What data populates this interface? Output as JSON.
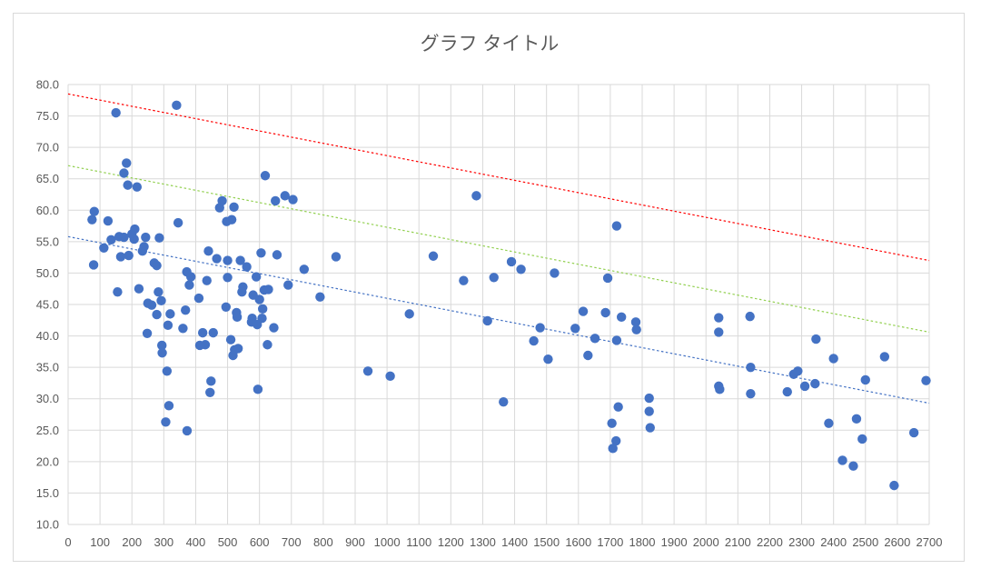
{
  "chart_data": {
    "type": "scatter",
    "title": "グラフ タイトル",
    "xlabel": "",
    "ylabel": "",
    "xlim": [
      0,
      2700
    ],
    "ylim": [
      10,
      80
    ],
    "x_ticks": [
      0,
      100,
      200,
      300,
      400,
      500,
      600,
      700,
      800,
      900,
      1000,
      1100,
      1200,
      1300,
      1400,
      1500,
      1600,
      1700,
      1800,
      1900,
      2000,
      2100,
      2200,
      2300,
      2400,
      2500,
      2600,
      2700
    ],
    "y_ticks": [
      10,
      15,
      20,
      25,
      30,
      35,
      40,
      45,
      50,
      55,
      60,
      65,
      70,
      75,
      80
    ],
    "y_tick_labels": [
      "10.0",
      "15.0",
      "20.0",
      "25.0",
      "30.0",
      "35.0",
      "40.0",
      "45.0",
      "50.0",
      "55.0",
      "60.0",
      "65.0",
      "70.0",
      "75.0",
      "80.0"
    ],
    "grid": true,
    "legend": "none",
    "colors": {
      "points": "#4472c4",
      "trend": "#4472c4",
      "upper": "#ff0000",
      "middle": "#92d050",
      "grid": "#d9d9d9",
      "text": "#595959"
    },
    "points": [
      [
        75,
        58.5
      ],
      [
        80,
        51.3
      ],
      [
        82,
        59.8
      ],
      [
        112,
        54
      ],
      [
        125,
        58.3
      ],
      [
        135,
        55.3
      ],
      [
        150,
        75.5
      ],
      [
        155,
        47
      ],
      [
        160,
        55.8
      ],
      [
        165,
        52.6
      ],
      [
        175,
        55.7
      ],
      [
        175,
        65.9
      ],
      [
        183,
        67.5
      ],
      [
        187,
        64
      ],
      [
        190,
        52.8
      ],
      [
        200,
        56.2
      ],
      [
        207,
        55.4
      ],
      [
        209,
        57
      ],
      [
        216,
        63.7
      ],
      [
        222,
        47.5
      ],
      [
        233,
        53.5
      ],
      [
        238,
        54.2
      ],
      [
        243,
        55.7
      ],
      [
        248,
        40.4
      ],
      [
        250,
        45.2
      ],
      [
        262,
        44.9
      ],
      [
        270,
        51.6
      ],
      [
        278,
        51.2
      ],
      [
        278,
        43.4
      ],
      [
        283,
        47
      ],
      [
        286,
        55.6
      ],
      [
        292,
        45.6
      ],
      [
        294,
        38.5
      ],
      [
        295,
        37.3
      ],
      [
        306,
        26.3
      ],
      [
        310,
        34.4
      ],
      [
        313,
        41.7
      ],
      [
        316,
        28.9
      ],
      [
        320,
        43.5
      ],
      [
        340,
        76.7
      ],
      [
        345,
        58
      ],
      [
        360,
        41.2
      ],
      [
        368,
        44.1
      ],
      [
        372,
        50.2
      ],
      [
        373,
        24.9
      ],
      [
        380,
        48.1
      ],
      [
        385,
        49.4
      ],
      [
        410,
        46
      ],
      [
        413,
        38.5
      ],
      [
        422,
        40.5
      ],
      [
        430,
        38.6
      ],
      [
        435,
        48.8
      ],
      [
        440,
        53.5
      ],
      [
        445,
        31
      ],
      [
        448,
        32.8
      ],
      [
        455,
        40.5
      ],
      [
        466,
        52.3
      ],
      [
        475,
        60.4
      ],
      [
        483,
        61.5
      ],
      [
        495,
        44.6
      ],
      [
        497,
        58.2
      ],
      [
        500,
        52
      ],
      [
        500,
        49.3
      ],
      [
        510,
        39.4
      ],
      [
        513,
        58.5
      ],
      [
        517,
        36.9
      ],
      [
        520,
        60.5
      ],
      [
        522,
        37.8
      ],
      [
        528,
        43.7
      ],
      [
        530,
        43
      ],
      [
        533,
        38
      ],
      [
        540,
        52
      ],
      [
        545,
        47
      ],
      [
        548,
        47.8
      ],
      [
        560,
        51
      ],
      [
        575,
        42.2
      ],
      [
        577,
        42.8
      ],
      [
        580,
        46.5
      ],
      [
        590,
        49.4
      ],
      [
        593,
        41.8
      ],
      [
        595,
        31.5
      ],
      [
        600,
        45.8
      ],
      [
        605,
        53.2
      ],
      [
        608,
        42.8
      ],
      [
        610,
        44.3
      ],
      [
        615,
        47.3
      ],
      [
        618,
        65.5
      ],
      [
        625,
        38.6
      ],
      [
        628,
        47.4
      ],
      [
        645,
        41.3
      ],
      [
        650,
        61.5
      ],
      [
        655,
        52.9
      ],
      [
        680,
        62.3
      ],
      [
        690,
        48.1
      ],
      [
        705,
        61.7
      ],
      [
        740,
        50.6
      ],
      [
        790,
        46.2
      ],
      [
        840,
        52.6
      ],
      [
        940,
        34.4
      ],
      [
        1010,
        33.6
      ],
      [
        1070,
        43.5
      ],
      [
        1145,
        52.7
      ],
      [
        1240,
        48.8
      ],
      [
        1280,
        62.3
      ],
      [
        1315,
        42.4
      ],
      [
        1335,
        49.3
      ],
      [
        1365,
        29.5
      ],
      [
        1390,
        51.8
      ],
      [
        1420,
        50.6
      ],
      [
        1460,
        39.2
      ],
      [
        1480,
        41.3
      ],
      [
        1505,
        36.3
      ],
      [
        1525,
        50
      ],
      [
        1590,
        41.2
      ],
      [
        1615,
        43.9
      ],
      [
        1630,
        36.9
      ],
      [
        1652,
        39.6
      ],
      [
        1685,
        43.7
      ],
      [
        1692,
        49.2
      ],
      [
        1705,
        26.1
      ],
      [
        1708,
        22.1
      ],
      [
        1718,
        23.3
      ],
      [
        1720,
        57.5
      ],
      [
        1720,
        39.3
      ],
      [
        1725,
        28.7
      ],
      [
        1735,
        43
      ],
      [
        1780,
        42.2
      ],
      [
        1782,
        41
      ],
      [
        1822,
        30.1
      ],
      [
        1822,
        28
      ],
      [
        1825,
        25.4
      ],
      [
        2040,
        42.9
      ],
      [
        2040,
        40.6
      ],
      [
        2040,
        32
      ],
      [
        2043,
        31.5
      ],
      [
        2138,
        43.1
      ],
      [
        2140,
        35
      ],
      [
        2140,
        30.8
      ],
      [
        2255,
        31.1
      ],
      [
        2275,
        33.9
      ],
      [
        2288,
        34.4
      ],
      [
        2310,
        32
      ],
      [
        2342,
        32.4
      ],
      [
        2345,
        39.5
      ],
      [
        2385,
        26.1
      ],
      [
        2400,
        36.4
      ],
      [
        2428,
        20.2
      ],
      [
        2462,
        19.3
      ],
      [
        2472,
        26.8
      ],
      [
        2490,
        23.6
      ],
      [
        2500,
        33
      ],
      [
        2560,
        36.7
      ],
      [
        2590,
        16.2
      ],
      [
        2652,
        24.6
      ],
      [
        2690,
        32.9
      ]
    ],
    "trendlines": [
      {
        "kind": "linear_fit",
        "from": [
          0,
          55.8
        ],
        "to": [
          2700,
          29.3
        ]
      },
      {
        "kind": "upper",
        "from": [
          0,
          78.5
        ],
        "to": [
          2700,
          52
        ]
      },
      {
        "kind": "middle",
        "from": [
          0,
          67.1
        ],
        "to": [
          2700,
          40.6
        ]
      }
    ]
  }
}
